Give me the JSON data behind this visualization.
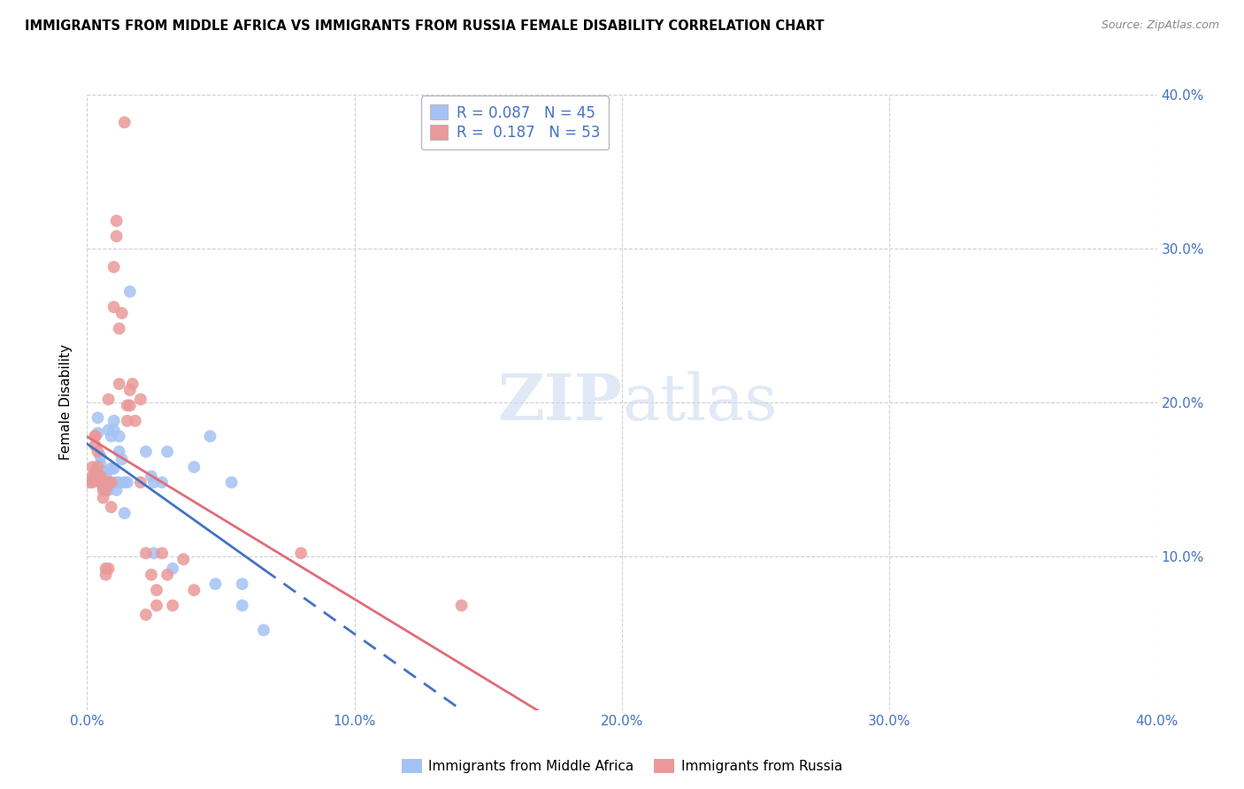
{
  "title": "IMMIGRANTS FROM MIDDLE AFRICA VS IMMIGRANTS FROM RUSSIA FEMALE DISABILITY CORRELATION CHART",
  "source": "Source: ZipAtlas.com",
  "ylabel": "Female Disability",
  "xlim": [
    0.0,
    0.4
  ],
  "ylim": [
    0.0,
    0.4
  ],
  "xtick_labels": [
    "0.0%",
    "10.0%",
    "20.0%",
    "30.0%",
    "40.0%"
  ],
  "xtick_vals": [
    0.0,
    0.1,
    0.2,
    0.3,
    0.4
  ],
  "ytick_labels_right": [
    "10.0%",
    "20.0%",
    "30.0%",
    "40.0%"
  ],
  "ytick_vals_right": [
    0.1,
    0.2,
    0.3,
    0.4
  ],
  "blue_color": "#a4c2f4",
  "pink_color": "#ea9999",
  "blue_line_color": "#4472c4",
  "pink_line_color": "#e06c7a",
  "watermark": "ZIPatlas",
  "legend_label_blue": "Immigrants from Middle Africa",
  "legend_label_pink": "Immigrants from Russia",
  "legend_R_blue": "R = 0.087",
  "legend_N_blue": "N = 45",
  "legend_R_pink": "R =  0.187",
  "legend_N_pink": "N = 53",
  "blue_scatter": [
    [
      0.002,
      0.15
    ],
    [
      0.003,
      0.155
    ],
    [
      0.004,
      0.19
    ],
    [
      0.004,
      0.18
    ],
    [
      0.005,
      0.165
    ],
    [
      0.005,
      0.16
    ],
    [
      0.006,
      0.155
    ],
    [
      0.006,
      0.15
    ],
    [
      0.006,
      0.148
    ],
    [
      0.006,
      0.145
    ],
    [
      0.007,
      0.148
    ],
    [
      0.007,
      0.145
    ],
    [
      0.007,
      0.152
    ],
    [
      0.008,
      0.148
    ],
    [
      0.008,
      0.143
    ],
    [
      0.008,
      0.182
    ],
    [
      0.009,
      0.178
    ],
    [
      0.009,
      0.157
    ],
    [
      0.01,
      0.188
    ],
    [
      0.01,
      0.182
    ],
    [
      0.01,
      0.157
    ],
    [
      0.011,
      0.148
    ],
    [
      0.011,
      0.143
    ],
    [
      0.012,
      0.178
    ],
    [
      0.012,
      0.168
    ],
    [
      0.012,
      0.148
    ],
    [
      0.013,
      0.163
    ],
    [
      0.014,
      0.148
    ],
    [
      0.014,
      0.128
    ],
    [
      0.015,
      0.148
    ],
    [
      0.016,
      0.272
    ],
    [
      0.022,
      0.168
    ],
    [
      0.024,
      0.152
    ],
    [
      0.025,
      0.148
    ],
    [
      0.025,
      0.102
    ],
    [
      0.028,
      0.148
    ],
    [
      0.03,
      0.168
    ],
    [
      0.032,
      0.092
    ],
    [
      0.04,
      0.158
    ],
    [
      0.046,
      0.178
    ],
    [
      0.048,
      0.082
    ],
    [
      0.054,
      0.148
    ],
    [
      0.058,
      0.082
    ],
    [
      0.058,
      0.068
    ],
    [
      0.066,
      0.052
    ]
  ],
  "pink_scatter": [
    [
      0.001,
      0.148
    ],
    [
      0.002,
      0.158
    ],
    [
      0.002,
      0.152
    ],
    [
      0.002,
      0.148
    ],
    [
      0.003,
      0.178
    ],
    [
      0.003,
      0.178
    ],
    [
      0.003,
      0.172
    ],
    [
      0.004,
      0.168
    ],
    [
      0.004,
      0.158
    ],
    [
      0.004,
      0.152
    ],
    [
      0.005,
      0.152
    ],
    [
      0.005,
      0.148
    ],
    [
      0.006,
      0.148
    ],
    [
      0.006,
      0.148
    ],
    [
      0.006,
      0.143
    ],
    [
      0.006,
      0.138
    ],
    [
      0.007,
      0.148
    ],
    [
      0.007,
      0.143
    ],
    [
      0.007,
      0.092
    ],
    [
      0.007,
      0.088
    ],
    [
      0.008,
      0.202
    ],
    [
      0.008,
      0.148
    ],
    [
      0.008,
      0.092
    ],
    [
      0.009,
      0.148
    ],
    [
      0.009,
      0.132
    ],
    [
      0.01,
      0.288
    ],
    [
      0.01,
      0.262
    ],
    [
      0.011,
      0.318
    ],
    [
      0.011,
      0.308
    ],
    [
      0.012,
      0.248
    ],
    [
      0.012,
      0.212
    ],
    [
      0.013,
      0.258
    ],
    [
      0.014,
      0.382
    ],
    [
      0.015,
      0.198
    ],
    [
      0.015,
      0.188
    ],
    [
      0.016,
      0.208
    ],
    [
      0.016,
      0.198
    ],
    [
      0.017,
      0.212
    ],
    [
      0.018,
      0.188
    ],
    [
      0.02,
      0.202
    ],
    [
      0.02,
      0.148
    ],
    [
      0.022,
      0.102
    ],
    [
      0.022,
      0.062
    ],
    [
      0.024,
      0.088
    ],
    [
      0.026,
      0.078
    ],
    [
      0.026,
      0.068
    ],
    [
      0.028,
      0.102
    ],
    [
      0.03,
      0.088
    ],
    [
      0.032,
      0.068
    ],
    [
      0.036,
      0.098
    ],
    [
      0.04,
      0.078
    ],
    [
      0.08,
      0.102
    ],
    [
      0.14,
      0.068
    ]
  ]
}
